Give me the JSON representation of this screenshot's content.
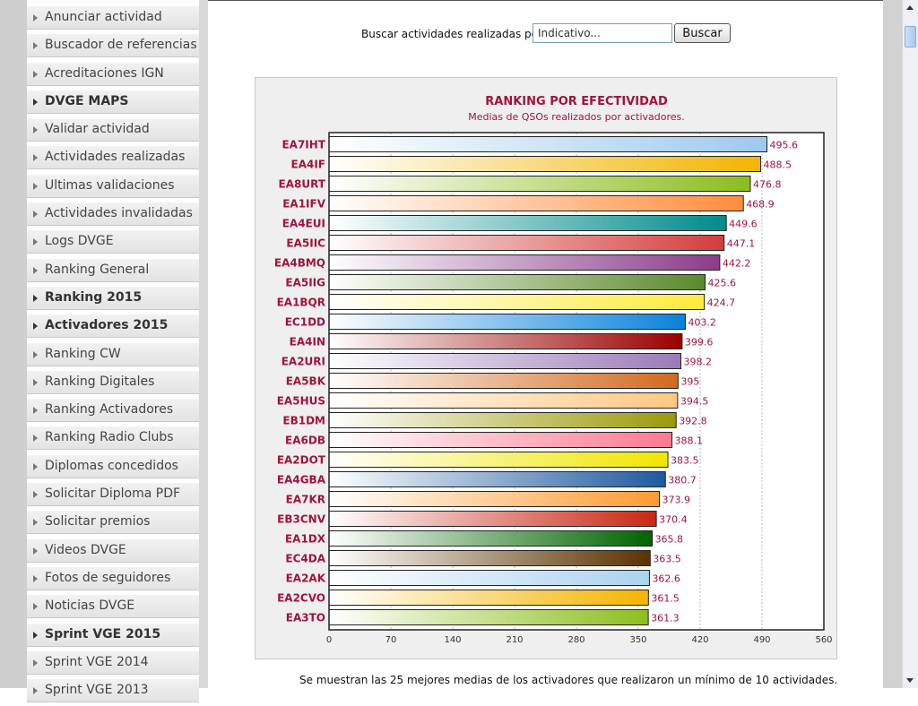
{
  "sidebar": {
    "items": [
      {
        "label": "Anunciar actividad",
        "bold": false
      },
      {
        "label": "Buscador de referencias",
        "bold": false
      },
      {
        "label": "Acreditaciones IGN",
        "bold": false
      },
      {
        "label": "DVGE MAPS",
        "bold": true
      },
      {
        "label": "Validar actividad",
        "bold": false
      },
      {
        "label": "Actividades realizadas",
        "bold": false
      },
      {
        "label": "Ultimas validaciones",
        "bold": false
      },
      {
        "label": "Actividades invalidadas",
        "bold": false
      },
      {
        "label": "Logs DVGE",
        "bold": false
      },
      {
        "label": "Ranking General",
        "bold": false
      },
      {
        "label": "Ranking 2015",
        "bold": true
      },
      {
        "label": "Activadores 2015",
        "bold": true
      },
      {
        "label": "Ranking CW",
        "bold": false
      },
      {
        "label": "Ranking Digitales",
        "bold": false
      },
      {
        "label": "Ranking Activadores",
        "bold": false
      },
      {
        "label": "Ranking Radio Clubs",
        "bold": false
      },
      {
        "label": "Diplomas concedidos",
        "bold": false
      },
      {
        "label": "Solicitar Diploma PDF",
        "bold": false
      },
      {
        "label": "Solicitar premios",
        "bold": false
      },
      {
        "label": "Videos DVGE",
        "bold": false
      },
      {
        "label": "Fotos de seguidores",
        "bold": false
      },
      {
        "label": "Noticias DVGE",
        "bold": false
      },
      {
        "label": "Sprint VGE 2015",
        "bold": true
      },
      {
        "label": "Sprint VGE 2014",
        "bold": false
      },
      {
        "label": "Sprint VGE 2013",
        "bold": false
      }
    ]
  },
  "search": {
    "label": "Buscar actividades realizadas por:",
    "placeholder": "Indicativo...",
    "button_label": "Buscar"
  },
  "footer_note": "Se muestran las 25 mejores medias de los activadores que realizaron un mínimo de 10 actividades.",
  "chart_data": {
    "type": "bar",
    "orientation": "horizontal",
    "title": "RANKING POR EFECTIVIDAD",
    "subtitle": "Medias de QSOs realizados por activadores.",
    "xlim": [
      0,
      560
    ],
    "x_ticks": [
      "0",
      "70",
      "140",
      "210",
      "280",
      "350",
      "420",
      "490",
      "560"
    ],
    "categories": [
      "EA7IHT",
      "EA4IF",
      "EA8URT",
      "EA1IFV",
      "EA4EUI",
      "EA5IIC",
      "EA4BMQ",
      "EA5IIG",
      "EA1BQR",
      "EC1DD",
      "EA4IN",
      "EA2URI",
      "EA5BK",
      "EA5HUS",
      "EB1DM",
      "EA6DB",
      "EA2DOT",
      "EA4GBA",
      "EA7KR",
      "EB3CNV",
      "EA1DX",
      "EC4DA",
      "EA2AK",
      "EA2CVO",
      "EA3TO"
    ],
    "values": [
      495.6,
      488.5,
      476.8,
      468.9,
      449.6,
      447.1,
      442.2,
      425.6,
      424.7,
      403.2,
      399.6,
      398.2,
      395,
      394.5,
      392.8,
      388.1,
      383.5,
      380.7,
      373.9,
      370.4,
      365.8,
      363.5,
      362.6,
      361.5,
      361.3
    ],
    "value_labels": [
      "495.6",
      "488.5",
      "476.8",
      "468.9",
      "449.6",
      "447.1",
      "442.2",
      "425.6",
      "424.7",
      "403.2",
      "399.6",
      "398.2",
      "395",
      "394.5",
      "392.8",
      "388.1",
      "383.5",
      "380.7",
      "373.9",
      "370.4",
      "365.8",
      "363.5",
      "362.6",
      "361.5",
      "361.3"
    ],
    "colors": [
      "#9ec9f0",
      "#f2b400",
      "#8cbd1e",
      "#ff8c3c",
      "#008b8b",
      "#d43c3c",
      "#8b3c8b",
      "#5a8a2a",
      "#ffeb3c",
      "#0a82dc",
      "#9a0000",
      "#9a7ab8",
      "#d2691e",
      "#ffc882",
      "#9a9a0a",
      "#ff7890",
      "#f0e600",
      "#1e5aa0",
      "#ff9a32",
      "#c82814",
      "#006400",
      "#5a3200",
      "#aad2f0",
      "#f5b400",
      "#8cbe1e"
    ],
    "grid": true,
    "legend": "none"
  }
}
